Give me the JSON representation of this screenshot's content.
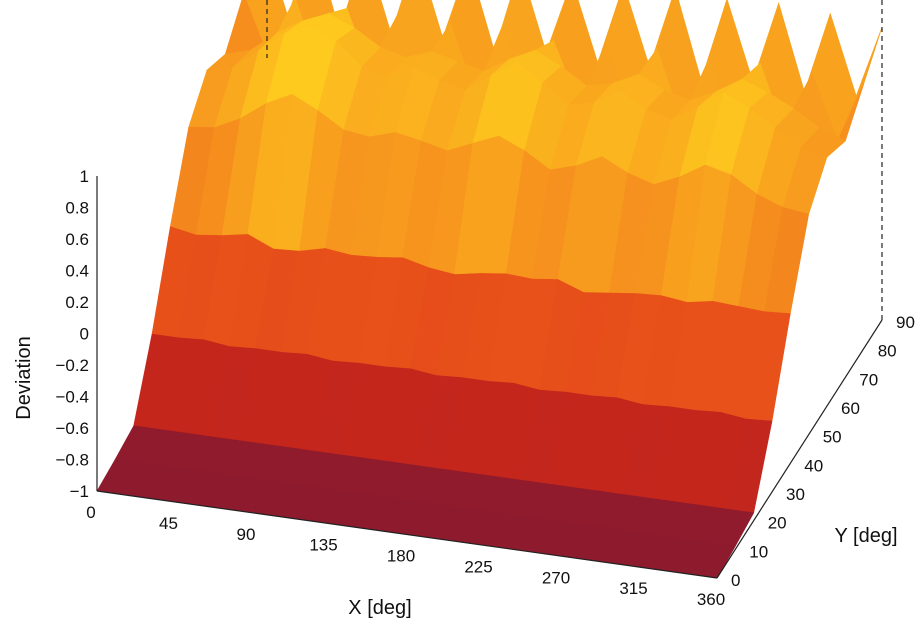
{
  "chart_data": {
    "type": "surface",
    "title": "",
    "xlabel": "X [deg]",
    "ylabel": "Y [deg]",
    "zlabel": "Deviation",
    "xlim": [
      0,
      360
    ],
    "ylim": [
      0,
      90
    ],
    "zlim": [
      -1,
      1
    ],
    "x_ticks": [
      "0",
      "45",
      "90",
      "135",
      "180",
      "225",
      "270",
      "315",
      "360"
    ],
    "y_ticks": [
      "0",
      "10",
      "20",
      "30",
      "40",
      "50",
      "60",
      "70",
      "80",
      "90"
    ],
    "z_ticks": [
      "−1",
      "−0.8",
      "−0.6",
      "−0.4",
      "−0.2",
      "0",
      "0.2",
      "0.4",
      "0.6",
      "0.8",
      "1"
    ],
    "colormap": [
      "#8a1a2e",
      "#c4261c",
      "#e8501a",
      "#f58a1e",
      "#ffd21e",
      "#ffff66"
    ],
    "grid": false,
    "surface": {
      "x_start": 0,
      "x_step": 15,
      "x_count": 25,
      "y_start": 0,
      "y_step": 10,
      "y_count": 10,
      "z": [
        [
          -1.0,
          -1.0,
          -1.0,
          -1.0,
          -1.0,
          -1.0,
          -1.0,
          -1.0,
          -1.0,
          -1.0,
          -1.0,
          -1.0,
          -1.0,
          -1.0,
          -1.0,
          -1.0,
          -1.0,
          -1.0,
          -1.0,
          -1.0,
          -1.0,
          -1.0,
          -1.0,
          -1.0,
          -1.0
        ],
        [
          -0.98,
          -0.98,
          -0.98,
          -0.98,
          -0.98,
          -0.98,
          -0.98,
          -0.98,
          -0.98,
          -0.98,
          -0.98,
          -0.98,
          -0.98,
          -0.98,
          -0.98,
          -0.98,
          -0.98,
          -0.98,
          -0.98,
          -0.98,
          -0.98,
          -0.98,
          -0.98,
          -0.98,
          -0.98
        ],
        [
          -0.95,
          -0.95,
          -0.95,
          -0.95,
          -0.95,
          -0.95,
          -0.95,
          -0.95,
          -0.95,
          -0.95,
          -0.95,
          -0.95,
          -0.95,
          -0.95,
          -0.95,
          -0.95,
          -0.95,
          -0.95,
          -0.95,
          -0.95,
          -0.95,
          -0.95,
          -0.95,
          -0.95,
          -0.95
        ],
        [
          -0.55,
          -0.55,
          -0.54,
          -0.56,
          -0.55,
          -0.55,
          -0.54,
          -0.56,
          -0.55,
          -0.55,
          -0.54,
          -0.56,
          -0.55,
          -0.55,
          -0.54,
          -0.56,
          -0.55,
          -0.55,
          -0.54,
          -0.56,
          -0.55,
          -0.55,
          -0.54,
          -0.56,
          -0.55
        ],
        [
          -0.05,
          -0.08,
          -0.06,
          -0.03,
          -0.1,
          -0.09,
          -0.05,
          -0.07,
          -0.06,
          -0.04,
          -0.08,
          -0.1,
          -0.07,
          -0.05,
          -0.06,
          -0.04,
          -0.1,
          -0.08,
          -0.06,
          -0.05,
          -0.07,
          -0.04,
          -0.05,
          -0.06,
          -0.05
        ],
        [
          0.4,
          0.42,
          0.5,
          0.62,
          0.7,
          0.62,
          0.52,
          0.5,
          0.55,
          0.52,
          0.48,
          0.55,
          0.62,
          0.55,
          0.45,
          0.5,
          0.58,
          0.5,
          0.45,
          0.52,
          0.62,
          0.58,
          0.48,
          0.42,
          0.4
        ],
        [
          0.58,
          0.62,
          0.75,
          0.88,
          0.95,
          0.88,
          0.74,
          0.7,
          0.78,
          0.72,
          0.68,
          0.8,
          0.9,
          0.8,
          0.68,
          0.72,
          0.82,
          0.72,
          0.68,
          0.78,
          0.9,
          0.82,
          0.72,
          0.62,
          0.58
        ],
        [
          0.5,
          0.55,
          0.68,
          0.78,
          0.85,
          0.78,
          0.68,
          0.64,
          0.7,
          0.66,
          0.62,
          0.72,
          0.8,
          0.72,
          0.62,
          0.66,
          0.74,
          0.66,
          0.62,
          0.7,
          0.8,
          0.74,
          0.66,
          0.56,
          0.5
        ],
        [
          0.7,
          0.3,
          0.72,
          0.25,
          0.7,
          0.28,
          0.72,
          0.3,
          0.7,
          0.26,
          0.72,
          0.3,
          0.68,
          0.28,
          0.7,
          0.3,
          0.72,
          0.26,
          0.7,
          0.3,
          0.72,
          0.28,
          0.7,
          0.3,
          0.68
        ],
        [
          0.9,
          0.4,
          0.92,
          0.35,
          0.9,
          0.38,
          0.92,
          0.4,
          0.9,
          0.36,
          0.92,
          0.4,
          0.88,
          0.38,
          0.9,
          0.4,
          0.92,
          0.36,
          0.9,
          0.4,
          0.92,
          0.38,
          0.9,
          0.4,
          0.86
        ]
      ]
    }
  }
}
